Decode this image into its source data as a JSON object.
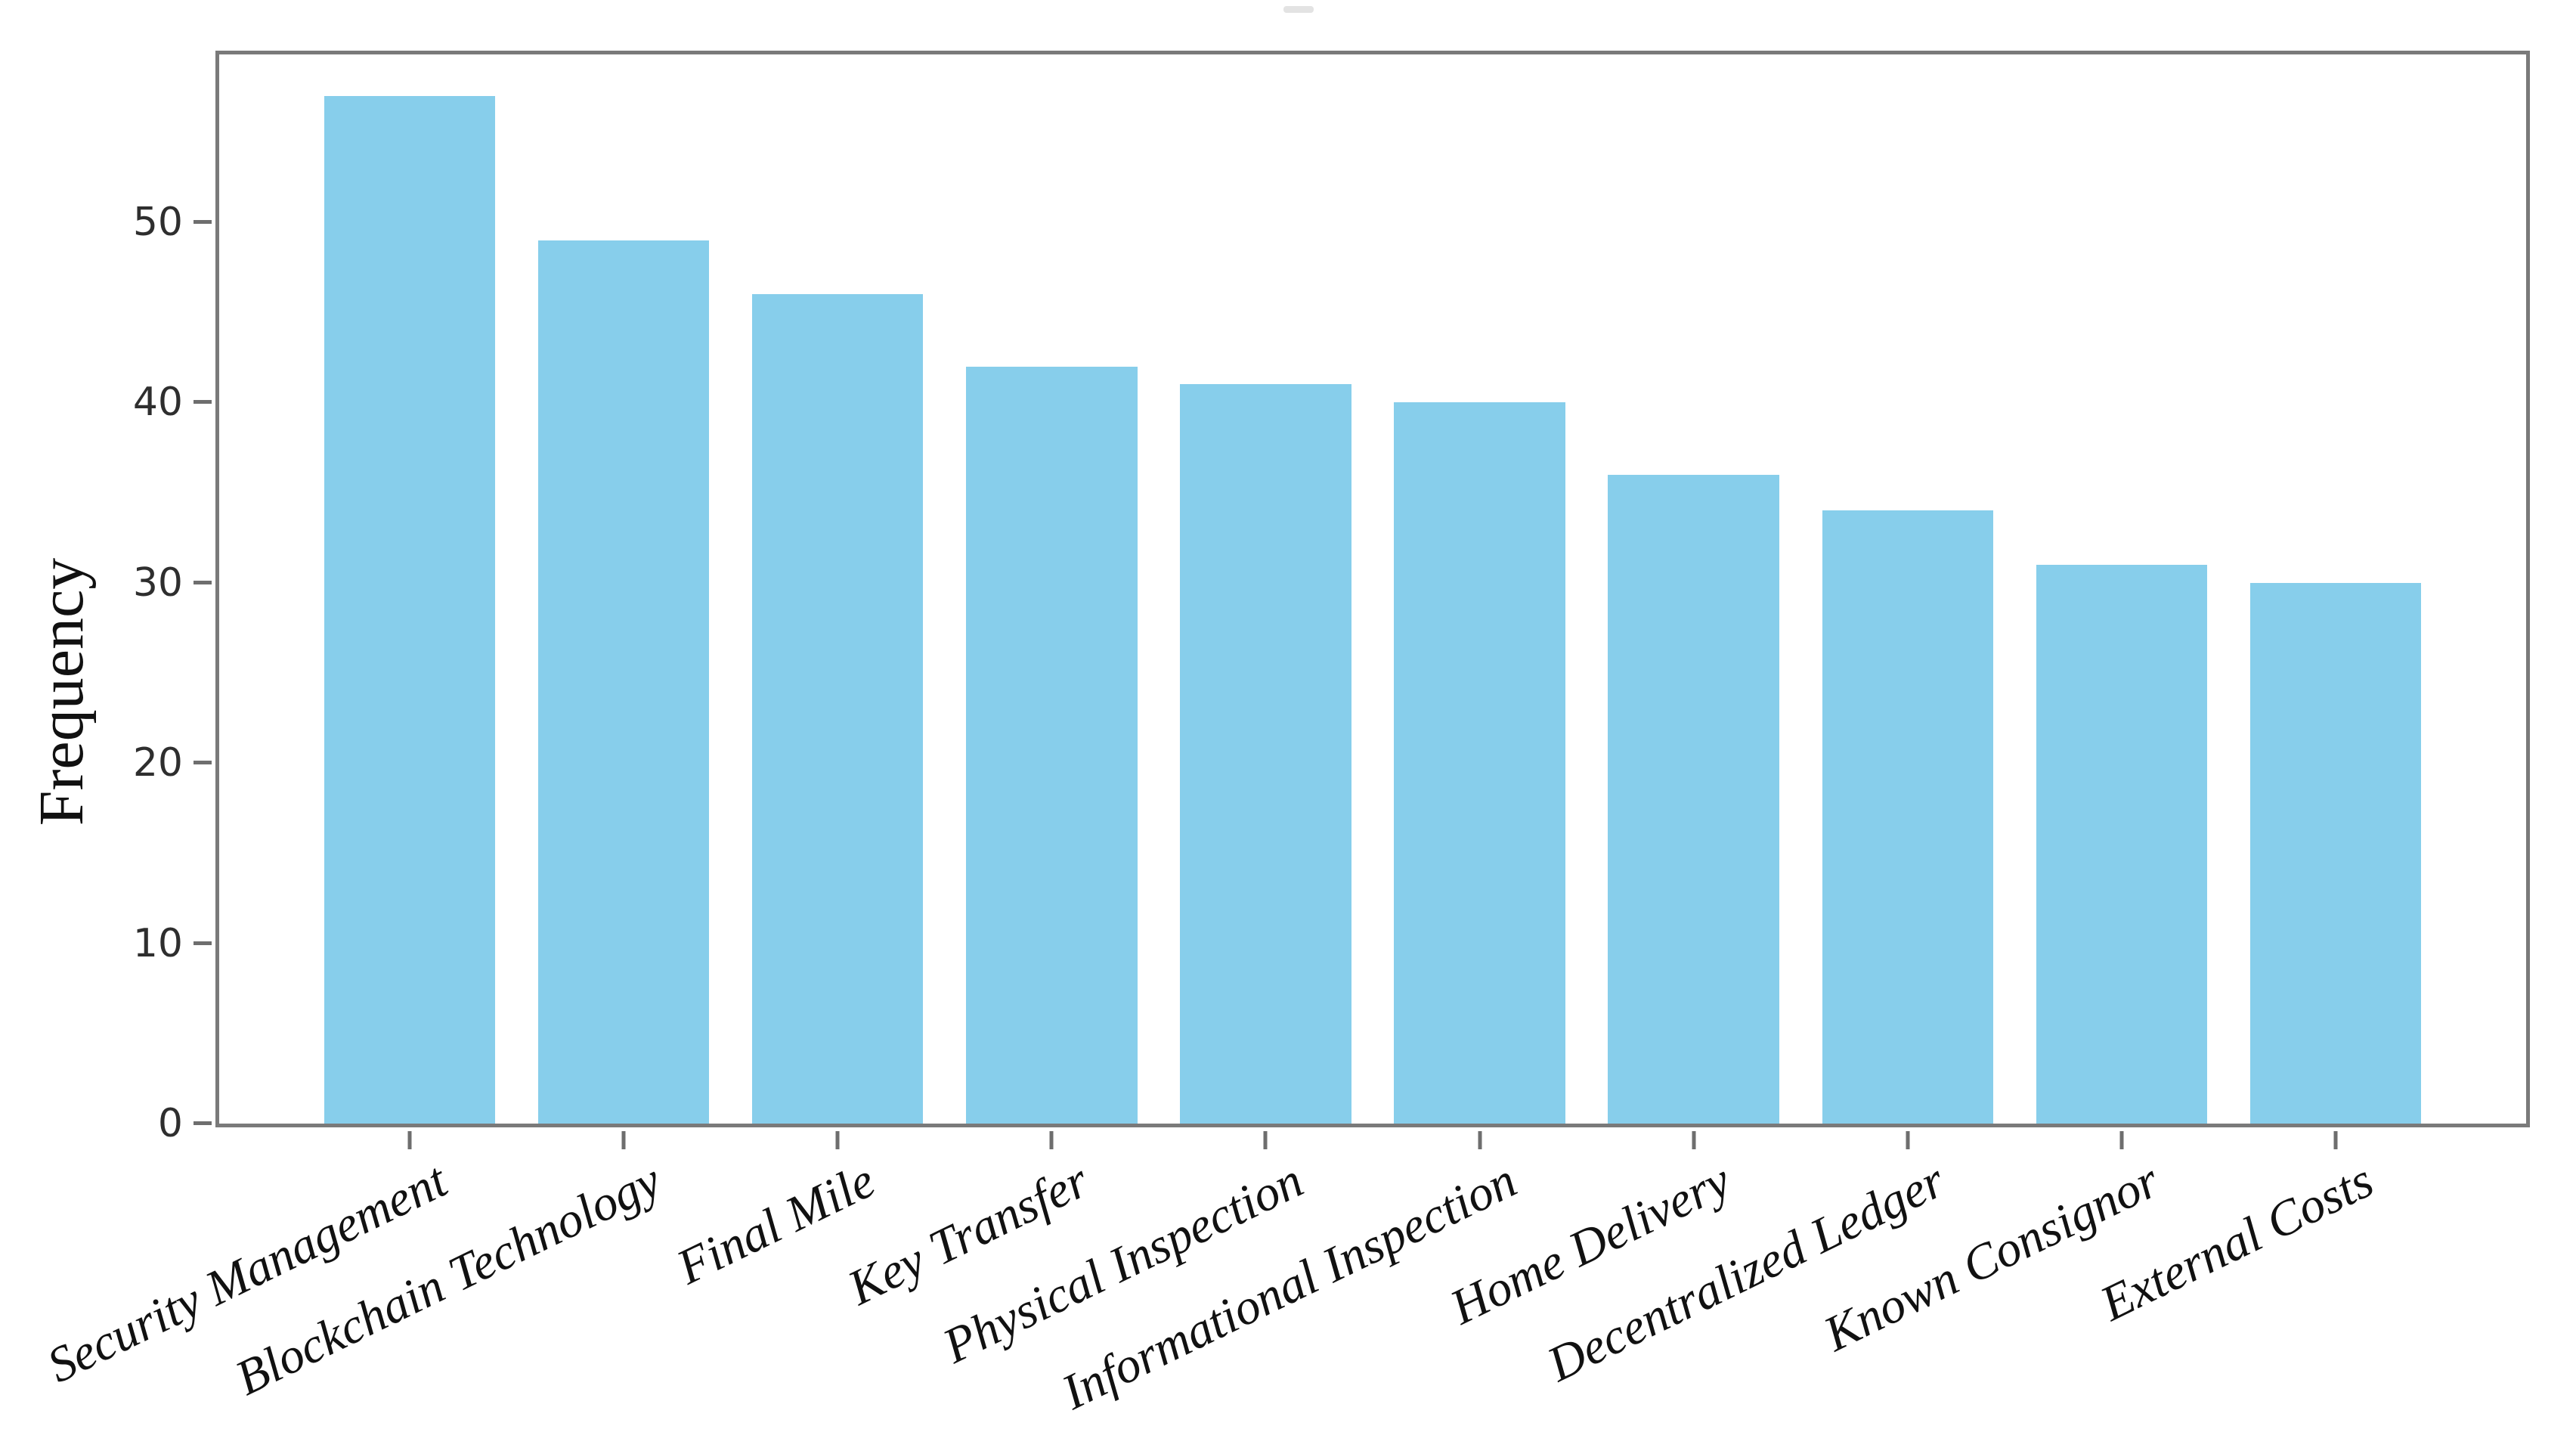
{
  "chart_data": {
    "type": "bar",
    "title": "",
    "xlabel": "",
    "ylabel": "Frequency",
    "categories": [
      "Security Management",
      "Blockchain Technology",
      "Final Mile",
      "Key Transfer",
      "Physical Inspection",
      "Informational Inspection",
      "Home Delivery",
      "Decentralized Ledger",
      "Known Consignor",
      "External Costs"
    ],
    "values": [
      57,
      49,
      46,
      42,
      41,
      40,
      36,
      34,
      31,
      30
    ],
    "yticks": [
      0,
      10,
      20,
      30,
      40,
      50
    ],
    "ylim": [
      0,
      59.3
    ],
    "grid": false,
    "legend_position": "none",
    "bar_color": "#87CEEB",
    "spine_color": "#7a7a7a",
    "ytick_label_color": "#2e2e2e",
    "xtick_label_color": "#111111",
    "background_color": "#ffffff"
  }
}
